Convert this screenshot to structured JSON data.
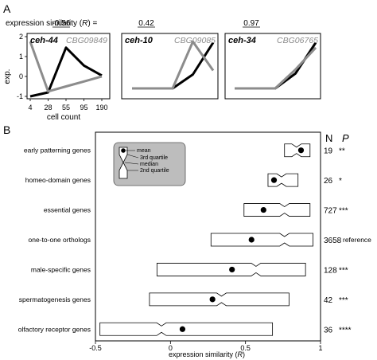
{
  "panel_a": {
    "letter": "A",
    "similarity_label": "expression similarity (",
    "similarity_symbol": "R",
    "similarity_suffix": ") =",
    "y_label": "exp.",
    "x_label": "cell count",
    "x_ticks": [
      "4",
      "28",
      "55",
      "95",
      "190"
    ],
    "y_ticks": [
      "-1",
      "0",
      "1",
      "2"
    ]
  },
  "panel_b": {
    "letter": "B",
    "col_n": "N",
    "col_p": "P",
    "legend": {
      "mean": "mean",
      "q3": "3rd quartile",
      "median": "median",
      "q2": "2nd quartile"
    }
  },
  "chart_data": [
    {
      "type": "line",
      "gene": "ceh-44",
      "ortholog": "CBG09849",
      "similarity": "-0.56",
      "x": [
        "4",
        "28",
        "55",
        "95",
        "190"
      ],
      "ylim": [
        -1.2,
        2
      ],
      "series": [
        {
          "color": "#000000",
          "values": [
            -1.0,
            -0.8,
            1.45,
            0.55,
            0.05
          ]
        },
        {
          "color": "#8c8c8c",
          "values": [
            1.75,
            -0.75,
            -0.5,
            -0.25,
            0.0
          ]
        }
      ]
    },
    {
      "type": "line",
      "gene": "ceh-10",
      "ortholog": "CBG09085",
      "similarity": "0.42",
      "x": [
        "4",
        "28",
        "55",
        "95",
        "190"
      ],
      "ylim": [
        -1.2,
        2
      ],
      "series": [
        {
          "color": "#000000",
          "values": [
            -0.6,
            -0.6,
            -0.6,
            0.1,
            1.7
          ]
        },
        {
          "color": "#8c8c8c",
          "values": [
            -0.6,
            -0.6,
            -0.6,
            1.75,
            0.3
          ]
        }
      ]
    },
    {
      "type": "line",
      "gene": "ceh-34",
      "ortholog": "CBG06765",
      "similarity": "0.97",
      "x": [
        "4",
        "28",
        "55",
        "95",
        "190"
      ],
      "ylim": [
        -1.2,
        2
      ],
      "series": [
        {
          "color": "#000000",
          "values": [
            -0.6,
            -0.6,
            -0.6,
            0.15,
            1.7
          ]
        },
        {
          "color": "#8c8c8c",
          "values": [
            -0.6,
            -0.6,
            -0.6,
            0.35,
            1.45
          ]
        }
      ]
    },
    {
      "type": "box",
      "xlabel_prefix": "expression similarity (",
      "xlabel_symbol": "R",
      "xlabel_suffix": ")",
      "xlim": [
        -0.5,
        1
      ],
      "xticks": [
        "-0.5",
        "0",
        "0.5",
        "1"
      ],
      "categories": [
        {
          "name": "early patterning genes",
          "n": "19",
          "p": "**",
          "whisker_low": 0.76,
          "q1": 0.76,
          "median": 0.84,
          "q3": 0.93,
          "whisker_high": 0.93,
          "mean": 0.87
        },
        {
          "name": "homeo-domain genes",
          "n": "26",
          "p": "*",
          "whisker_low": 0.65,
          "q1": 0.65,
          "median": 0.74,
          "q3": 0.85,
          "whisker_high": 0.85,
          "mean": 0.69
        },
        {
          "name": "essential genes",
          "n": "727",
          "p": "***",
          "whisker_low": 0.49,
          "q1": 0.49,
          "median": 0.76,
          "q3": 0.93,
          "whisker_high": 0.93,
          "mean": 0.62
        },
        {
          "name": "one-to-one orthologs",
          "n": "3658",
          "p": "reference",
          "whisker_low": 0.27,
          "q1": 0.27,
          "median": 0.76,
          "q3": 0.95,
          "whisker_high": 0.95,
          "mean": 0.54
        },
        {
          "name": "male-specific genes",
          "n": "128",
          "p": "***",
          "whisker_low": -0.09,
          "q1": -0.09,
          "median": 0.57,
          "q3": 0.9,
          "whisker_high": 0.9,
          "mean": 0.41
        },
        {
          "name": "spermatogenesis genes",
          "n": "42",
          "p": "***",
          "whisker_low": -0.14,
          "q1": -0.14,
          "median": 0.34,
          "q3": 0.79,
          "whisker_high": 0.79,
          "mean": 0.28
        },
        {
          "name": "olfactory receptor genes",
          "n": "36",
          "p": "****",
          "whisker_low": -0.47,
          "q1": -0.47,
          "median": -0.06,
          "q3": 0.68,
          "whisker_high": 0.68,
          "mean": 0.08
        }
      ]
    }
  ]
}
